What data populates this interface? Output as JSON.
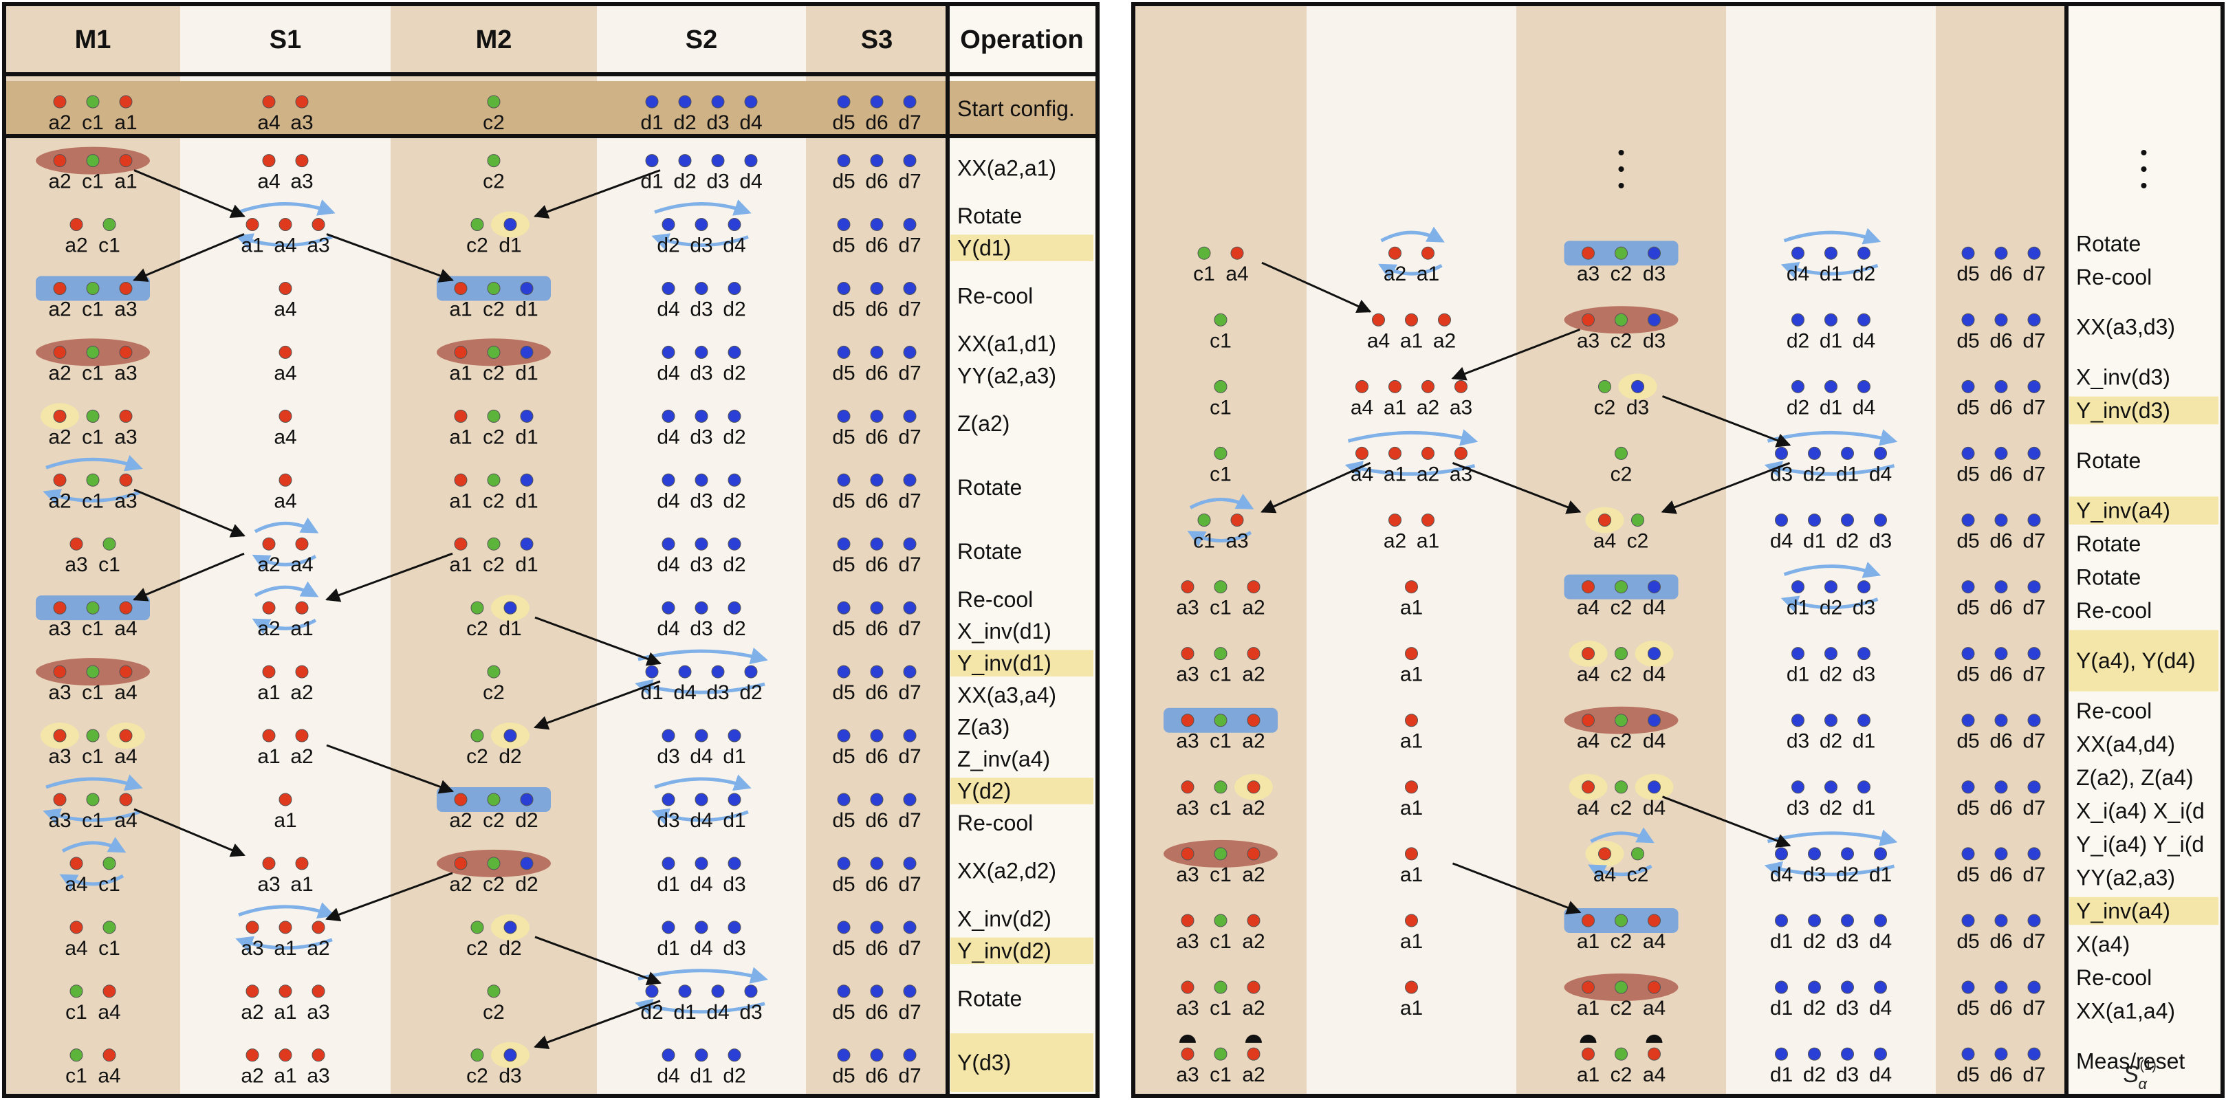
{
  "colors": {
    "ion_a": "#e03a1e",
    "ion_c": "#5cb53a",
    "ion_d": "#2a3fd6",
    "zone_m": "#e8d7be",
    "zone_s": "#f8f4ed",
    "start_band": "#d0b287",
    "yellow_highlight": "#f4e6a8",
    "red_highlight": "#b97363",
    "blue_highlight": "#7fa7d9",
    "rotation_arrow": "#7fb0e8"
  },
  "panel_left": {
    "headers": [
      "M1",
      "S1",
      "M2",
      "S2",
      "S3"
    ],
    "operation_header": "Operation",
    "rows": [
      {
        "cells": [
          [
            "a2",
            "c1",
            "a1"
          ],
          [
            "a4",
            "a3"
          ],
          [
            "c2"
          ],
          [
            "d1",
            "d2",
            "d3",
            "d4"
          ],
          [
            "d5",
            "d6",
            "d7"
          ]
        ],
        "hl": [
          0,
          0,
          0,
          0,
          0
        ],
        "rot": [
          0,
          0,
          0,
          0,
          0
        ],
        "op": "Start config.",
        "op_hl": 0
      },
      {
        "cells": [
          [
            "a2",
            "c1",
            "a1"
          ],
          [
            "a4",
            "a3"
          ],
          [
            "c2"
          ],
          [
            "d1",
            "d2",
            "d3",
            "d4"
          ],
          [
            "d5",
            "d6",
            "d7"
          ]
        ],
        "hl": [
          "red",
          0,
          0,
          0,
          0
        ],
        "rot": [
          0,
          0,
          0,
          0,
          0
        ],
        "op": "XX(a2,a1)",
        "op_hl": 0
      },
      {
        "cells": [
          [
            "a2",
            "c1"
          ],
          [
            "a1",
            "a4",
            "a3"
          ],
          [
            "c2",
            "d1"
          ],
          [
            "d2",
            "d3",
            "d4"
          ],
          [
            "d5",
            "d6",
            "d7"
          ]
        ],
        "hl": [
          0,
          0,
          "y:1",
          0,
          0
        ],
        "rot": [
          0,
          1,
          0,
          1,
          0
        ],
        "op": "Rotate|Y(d1)",
        "op_hl": 2
      },
      {
        "cells": [
          [
            "a2",
            "c1",
            "a3"
          ],
          [
            "a4"
          ],
          [
            "a1",
            "c2",
            "d1"
          ],
          [
            "d4",
            "d3",
            "d2"
          ],
          [
            "d5",
            "d6",
            "d7"
          ]
        ],
        "hl": [
          "blue",
          0,
          "blue",
          0,
          0
        ],
        "rot": [
          0,
          0,
          0,
          0,
          0
        ],
        "op": "Re-cool",
        "op_hl": 0
      },
      {
        "cells": [
          [
            "a2",
            "c1",
            "a3"
          ],
          [
            "a4"
          ],
          [
            "a1",
            "c2",
            "d1"
          ],
          [
            "d4",
            "d3",
            "d2"
          ],
          [
            "d5",
            "d6",
            "d7"
          ]
        ],
        "hl": [
          "red",
          0,
          "red",
          0,
          0
        ],
        "rot": [
          0,
          0,
          0,
          0,
          0
        ],
        "op": "XX(a1,d1)|YY(a2,a3)",
        "op_hl": 0
      },
      {
        "cells": [
          [
            "a2",
            "c1",
            "a3"
          ],
          [
            "a4"
          ],
          [
            "a1",
            "c2",
            "d1"
          ],
          [
            "d4",
            "d3",
            "d2"
          ],
          [
            "d5",
            "d6",
            "d7"
          ]
        ],
        "hl": [
          "y:0",
          0,
          0,
          0,
          0
        ],
        "rot": [
          0,
          0,
          0,
          0,
          0
        ],
        "op": "Z(a2)",
        "op_hl": 0
      },
      {
        "cells": [
          [
            "a2",
            "c1",
            "a3"
          ],
          [
            "a4"
          ],
          [
            "a1",
            "c2",
            "d1"
          ],
          [
            "d4",
            "d3",
            "d2"
          ],
          [
            "d5",
            "d6",
            "d7"
          ]
        ],
        "hl": [
          0,
          0,
          0,
          0,
          0
        ],
        "rot": [
          1,
          0,
          0,
          0,
          0
        ],
        "op": "Rotate",
        "op_hl": 0
      },
      {
        "cells": [
          [
            "a3",
            "c1"
          ],
          [
            "a2",
            "a4"
          ],
          [
            "a1",
            "c2",
            "d1"
          ],
          [
            "d4",
            "d3",
            "d2"
          ],
          [
            "d5",
            "d6",
            "d7"
          ]
        ],
        "hl": [
          0,
          0,
          0,
          0,
          0
        ],
        "rot": [
          0,
          1,
          0,
          0,
          0
        ],
        "op": "Rotate",
        "op_hl": 0
      },
      {
        "cells": [
          [
            "a3",
            "c1",
            "a4"
          ],
          [
            "a2",
            "a1"
          ],
          [
            "c2",
            "d1"
          ],
          [
            "d4",
            "d3",
            "d2"
          ],
          [
            "d5",
            "d6",
            "d7"
          ]
        ],
        "hl": [
          "blue",
          0,
          "y:1",
          0,
          0
        ],
        "rot": [
          0,
          1,
          0,
          0,
          0
        ],
        "op": "Re-cool|X_inv(d1)",
        "op_hl": 0
      },
      {
        "cells": [
          [
            "a3",
            "c1",
            "a4"
          ],
          [
            "a1",
            "a2"
          ],
          [
            "c2"
          ],
          [
            "d1",
            "d4",
            "d3",
            "d2"
          ],
          [
            "d5",
            "d6",
            "d7"
          ]
        ],
        "hl": [
          "red",
          0,
          0,
          0,
          0
        ],
        "rot": [
          0,
          0,
          0,
          1,
          0
        ],
        "op": "Y_inv(d1)|XX(a3,a4)",
        "op_hl": 1
      },
      {
        "cells": [
          [
            "a3",
            "c1",
            "a4"
          ],
          [
            "a1",
            "a2"
          ],
          [
            "c2",
            "d2"
          ],
          [
            "d3",
            "d4",
            "d1"
          ],
          [
            "d5",
            "d6",
            "d7"
          ]
        ],
        "hl": [
          "y:0,2",
          0,
          "y:1",
          0,
          0
        ],
        "rot": [
          0,
          0,
          0,
          0,
          0
        ],
        "op": "Z(a3)|Z_inv(a4)",
        "op_hl": 0
      },
      {
        "cells": [
          [
            "a3",
            "c1",
            "a4"
          ],
          [
            "a1"
          ],
          [
            "a2",
            "c2",
            "d2"
          ],
          [
            "d3",
            "d4",
            "d1"
          ],
          [
            "d5",
            "d6",
            "d7"
          ]
        ],
        "hl": [
          0,
          0,
          "blue",
          0,
          0
        ],
        "rot": [
          1,
          0,
          0,
          1,
          0
        ],
        "op": "Y(d2)|Re-cool",
        "op_hl": 1
      },
      {
        "cells": [
          [
            "a4",
            "c1"
          ],
          [
            "a3",
            "a1"
          ],
          [
            "a2",
            "c2",
            "d2"
          ],
          [
            "d1",
            "d4",
            "d3"
          ],
          [
            "d5",
            "d6",
            "d7"
          ]
        ],
        "hl": [
          0,
          0,
          "red",
          0,
          0
        ],
        "rot": [
          1,
          0,
          0,
          0,
          0
        ],
        "op": "XX(a2,d2)",
        "op_hl": 0
      },
      {
        "cells": [
          [
            "a4",
            "c1"
          ],
          [
            "a3",
            "a1",
            "a2"
          ],
          [
            "c2",
            "d2"
          ],
          [
            "d1",
            "d4",
            "d3"
          ],
          [
            "d5",
            "d6",
            "d7"
          ]
        ],
        "hl": [
          0,
          0,
          "y:1",
          0,
          0
        ],
        "rot": [
          0,
          1,
          0,
          0,
          0
        ],
        "op": "X_inv(d2)|Y_inv(d2)",
        "op_hl": 2
      },
      {
        "cells": [
          [
            "c1",
            "a4"
          ],
          [
            "a2",
            "a1",
            "a3"
          ],
          [
            "c2"
          ],
          [
            "d2",
            "d1",
            "d4",
            "d3"
          ],
          [
            "d5",
            "d6",
            "d7"
          ]
        ],
        "hl": [
          0,
          0,
          0,
          0,
          0
        ],
        "rot": [
          0,
          0,
          0,
          1,
          0
        ],
        "op": "Rotate",
        "op_hl": 0
      },
      {
        "cells": [
          [
            "c1",
            "a4"
          ],
          [
            "a2",
            "a1",
            "a3"
          ],
          [
            "c2",
            "d3"
          ],
          [
            "d4",
            "d1",
            "d2"
          ],
          [
            "d5",
            "d6",
            "d7"
          ]
        ],
        "hl": [
          0,
          0,
          "y:1",
          0,
          0
        ],
        "rot": [
          0,
          0,
          0,
          0,
          0
        ],
        "op": "Y(d3)",
        "op_hl": 1
      }
    ]
  },
  "panel_right": {
    "rows": [
      {
        "cells": [
          [
            "c1",
            "a4"
          ],
          [
            "a2",
            "a1"
          ],
          [
            "a3",
            "c2",
            "d3"
          ],
          [
            "d4",
            "d1",
            "d2"
          ],
          [
            "d5",
            "d6",
            "d7"
          ]
        ],
        "hl": [
          0,
          0,
          "blue",
          0,
          0
        ],
        "rot": [
          0,
          1,
          0,
          1,
          0
        ],
        "op": "Rotate|Re-cool",
        "op_hl": 0
      },
      {
        "cells": [
          [
            "c1"
          ],
          [
            "a4",
            "a1",
            "a2"
          ],
          [
            "a3",
            "c2",
            "d3"
          ],
          [
            "d2",
            "d1",
            "d4"
          ],
          [
            "d5",
            "d6",
            "d7"
          ]
        ],
        "hl": [
          0,
          0,
          "red",
          0,
          0
        ],
        "rot": [
          0,
          0,
          0,
          0,
          0
        ],
        "op": "XX(a3,d3)",
        "op_hl": 0
      },
      {
        "cells": [
          [
            "c1"
          ],
          [
            "a4",
            "a1",
            "a2",
            "a3"
          ],
          [
            "c2",
            "d3"
          ],
          [
            "d2",
            "d1",
            "d4"
          ],
          [
            "d5",
            "d6",
            "d7"
          ]
        ],
        "hl": [
          0,
          0,
          "y:1",
          0,
          0
        ],
        "rot": [
          0,
          0,
          0,
          0,
          0
        ],
        "op": "X_inv(d3)|Y_inv(d3)",
        "op_hl": 2
      },
      {
        "cells": [
          [
            "c1"
          ],
          [
            "a4",
            "a1",
            "a2",
            "a3"
          ],
          [
            "c2"
          ],
          [
            "d3",
            "d2",
            "d1",
            "d4"
          ],
          [
            "d5",
            "d6",
            "d7"
          ]
        ],
        "hl": [
          0,
          0,
          0,
          0,
          0
        ],
        "rot": [
          0,
          1,
          0,
          1,
          0
        ],
        "op": "Rotate",
        "op_hl": 0
      },
      {
        "cells": [
          [
            "c1",
            "a3"
          ],
          [
            "a2",
            "a1"
          ],
          [
            "a4",
            "c2"
          ],
          [
            "d4",
            "d1",
            "d2",
            "d3"
          ],
          [
            "d5",
            "d6",
            "d7"
          ]
        ],
        "hl": [
          0,
          0,
          "y:0",
          0,
          0
        ],
        "rot": [
          1,
          0,
          0,
          0,
          0
        ],
        "op": "Y_inv(a4)|Rotate",
        "op_hl": 1
      },
      {
        "cells": [
          [
            "a3",
            "c1",
            "a2"
          ],
          [
            "a1"
          ],
          [
            "a4",
            "c2",
            "d4"
          ],
          [
            "d1",
            "d2",
            "d3"
          ],
          [
            "d5",
            "d6",
            "d7"
          ]
        ],
        "hl": [
          0,
          0,
          "blue",
          0,
          0
        ],
        "rot": [
          0,
          0,
          0,
          1,
          0
        ],
        "op": "Rotate|Re-cool",
        "op_hl": 0
      },
      {
        "cells": [
          [
            "a3",
            "c1",
            "a2"
          ],
          [
            "a1"
          ],
          [
            "a4",
            "c2",
            "d4"
          ],
          [
            "d1",
            "d2",
            "d3"
          ],
          [
            "d5",
            "d6",
            "d7"
          ]
        ],
        "hl": [
          0,
          0,
          "y:0,2",
          0,
          0
        ],
        "rot": [
          0,
          0,
          0,
          0,
          0
        ],
        "op": "Y(a4), Y(d4)",
        "op_hl": 1
      },
      {
        "cells": [
          [
            "a3",
            "c1",
            "a2"
          ],
          [
            "a1"
          ],
          [
            "a4",
            "c2",
            "d4"
          ],
          [
            "d3",
            "d2",
            "d1"
          ],
          [
            "d5",
            "d6",
            "d7"
          ]
        ],
        "hl": [
          "blue",
          0,
          "red",
          0,
          0
        ],
        "rot": [
          0,
          0,
          0,
          0,
          0
        ],
        "op": "Re-cool|XX(a4,d4)",
        "op_hl": 0
      },
      {
        "cells": [
          [
            "a3",
            "c1",
            "a2"
          ],
          [
            "a1"
          ],
          [
            "a4",
            "c2",
            "d4"
          ],
          [
            "d3",
            "d2",
            "d1"
          ],
          [
            "d5",
            "d6",
            "d7"
          ]
        ],
        "hl": [
          "y:2",
          0,
          "y:0,2",
          0,
          0
        ],
        "rot": [
          0,
          0,
          0,
          0,
          0
        ],
        "op": "Z(a2), Z(a4)|X_i(a4) X_i(d",
        "op_hl": 0
      },
      {
        "cells": [
          [
            "a3",
            "c1",
            "a2"
          ],
          [
            "a1"
          ],
          [
            "a4",
            "c2"
          ],
          [
            "d4",
            "d3",
            "d2",
            "d1"
          ],
          [
            "d5",
            "d6",
            "d7"
          ]
        ],
        "hl": [
          "red",
          0,
          "y:0",
          0,
          0
        ],
        "rot": [
          0,
          0,
          1,
          1,
          0
        ],
        "op": "Y_i(a4) Y_i(d|YY(a2,a3)",
        "op_hl": 0
      },
      {
        "cells": [
          [
            "a3",
            "c1",
            "a2"
          ],
          [
            "a1"
          ],
          [
            "a1",
            "c2",
            "a4"
          ],
          [
            "d1",
            "d2",
            "d3",
            "d4"
          ],
          [
            "d5",
            "d6",
            "d7"
          ]
        ],
        "hl": [
          0,
          0,
          "blue",
          0,
          0
        ],
        "rot": [
          0,
          0,
          0,
          0,
          0
        ],
        "op": "Y_inv(a4)|X(a4)",
        "op_hl": 1
      },
      {
        "cells": [
          [
            "a3",
            "c1",
            "a2"
          ],
          [
            "a1"
          ],
          [
            "a1",
            "c2",
            "a4"
          ],
          [
            "d1",
            "d2",
            "d3",
            "d4"
          ],
          [
            "d5",
            "d6",
            "d7"
          ]
        ],
        "hl": [
          0,
          0,
          "red",
          0,
          0
        ],
        "rot": [
          0,
          0,
          0,
          0,
          0
        ],
        "op": "Re-cool|XX(a1,a4)",
        "op_hl": 0
      },
      {
        "cells": [
          [
            "a3",
            "c1",
            "a2"
          ],
          [],
          [
            "a1",
            "c2",
            "a4"
          ],
          [
            "d1",
            "d2",
            "d3",
            "d4"
          ],
          [
            "d5",
            "d6",
            "d7"
          ]
        ],
        "hl": [
          0,
          0,
          0,
          0,
          0
        ],
        "rot": [
          0,
          0,
          0,
          0,
          0
        ],
        "op": "Meas/reset",
        "op_hl": 0
      }
    ],
    "final_label": "S",
    "final_sub": "α",
    "final_sup": "(1)"
  }
}
